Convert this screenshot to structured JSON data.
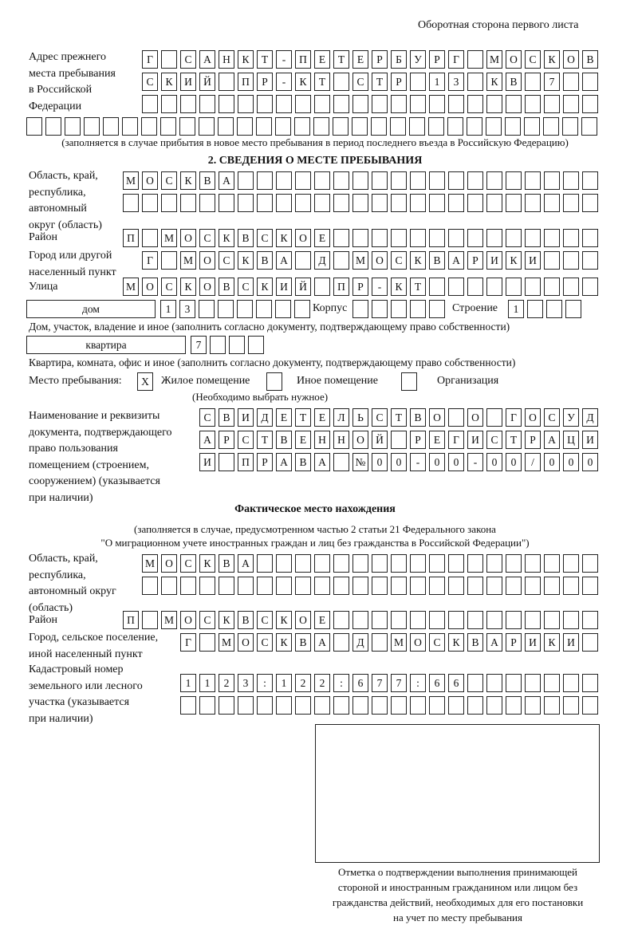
{
  "header": {
    "page_side": "Оборотная сторона первого листа"
  },
  "previous_address": {
    "label": "Адрес прежнего\nместа пребывания\nв Российской\nФедерации",
    "rows": [
      [
        "Г",
        "",
        "С",
        "А",
        "Н",
        "К",
        "Т",
        "-",
        "П",
        "Е",
        "Т",
        "Е",
        "Р",
        "Б",
        "У",
        "Р",
        "Г",
        "",
        "М",
        "О",
        "С",
        "К",
        "О",
        "В"
      ],
      [
        "С",
        "К",
        "И",
        "Й",
        "",
        "П",
        "Р",
        "-",
        "К",
        "Т",
        "",
        "С",
        "Т",
        "Р",
        "",
        "1",
        "3",
        "",
        "К",
        "В",
        "",
        "7",
        "",
        ""
      ],
      [
        "",
        "",
        "",
        "",
        "",
        "",
        "",
        "",
        "",
        "",
        "",
        "",
        "",
        "",
        "",
        "",
        "",
        "",
        "",
        "",
        "",
        "",
        "",
        ""
      ],
      [
        "",
        "",
        "",
        "",
        "",
        "",
        "",
        "",
        "",
        "",
        "",
        "",
        "",
        "",
        "",
        "",
        "",
        "",
        "",
        "",
        "",
        "",
        "",
        "",
        "",
        "",
        "",
        "",
        "",
        ""
      ]
    ],
    "note": "(заполняется в случае прибытия в новое место пребывания в период последнего въезда в Российскую Федерацию)"
  },
  "section2": {
    "title": "2. СВЕДЕНИЯ О МЕСТЕ ПРЕБЫВАНИЯ",
    "region_label": "Область, край,\nреспублика,\nавтономный\nокруг (область)",
    "region_rows": [
      [
        "М",
        "О",
        "С",
        "К",
        "В",
        "А",
        "",
        "",
        "",
        "",
        "",
        "",
        "",
        "",
        "",
        "",
        "",
        "",
        "",
        "",
        "",
        "",
        "",
        "",
        ""
      ],
      [
        "",
        "",
        "",
        "",
        "",
        "",
        "",
        "",
        "",
        "",
        "",
        "",
        "",
        "",
        "",
        "",
        "",
        "",
        "",
        "",
        "",
        "",
        "",
        "",
        ""
      ]
    ],
    "district_label": "Район",
    "district_row": [
      "П",
      "",
      "М",
      "О",
      "С",
      "К",
      "В",
      "С",
      "К",
      "О",
      "Е",
      "",
      "",
      "",
      "",
      "",
      "",
      "",
      "",
      "",
      "",
      "",
      "",
      "",
      ""
    ],
    "city_label": "Город или другой\nнаселенный пункт",
    "city_row": [
      "Г",
      "",
      "М",
      "О",
      "С",
      "К",
      "В",
      "А",
      "",
      "Д",
      "",
      "М",
      "О",
      "С",
      "К",
      "В",
      "А",
      "Р",
      "И",
      "К",
      "И",
      "",
      "",
      ""
    ],
    "street_label": "Улица",
    "street_row": [
      "М",
      "О",
      "С",
      "К",
      "О",
      "В",
      "С",
      "К",
      "И",
      "Й",
      "",
      "П",
      "Р",
      "-",
      "К",
      "Т",
      "",
      "",
      "",
      "",
      "",
      "",
      "",
      "",
      ""
    ],
    "house_type": "дом",
    "house_row": [
      "1",
      "3",
      "",
      "",
      "",
      "",
      "",
      ""
    ],
    "korpus_label": "Корпус",
    "korpus_row": [
      "",
      "",
      "",
      "",
      ""
    ],
    "building_label": "Строение",
    "building_row": [
      "1",
      "",
      "",
      ""
    ],
    "house_note": "Дом, участок, владение и иное (заполнить согласно документу, подтверждающему право собственности)",
    "apt_type": "квартира",
    "apt_row": [
      "7",
      "",
      "",
      ""
    ],
    "apt_note": "Квартира, комната, офис и иное (заполнить согласно документу, подтверждающему право собственности)",
    "stay_place_label": "Место пребывания:",
    "options": [
      {
        "label": "Жилое помещение",
        "mark": "X"
      },
      {
        "label": "Иное помещение",
        "mark": ""
      },
      {
        "label": "Организация",
        "mark": ""
      }
    ],
    "choose_note": "(Необходимо выбрать нужное)",
    "doc_label": "Наименование и реквизиты\nдокумента, подтверждающего\nправо пользования\nпомещением (строением,\nсооружением) (указывается\nпри наличии)",
    "doc_rows": [
      [
        "С",
        "В",
        "И",
        "Д",
        "Е",
        "Т",
        "Е",
        "Л",
        "Ь",
        "С",
        "Т",
        "В",
        "О",
        "",
        "О",
        "",
        "Г",
        "О",
        "С",
        "У",
        "Д"
      ],
      [
        "А",
        "Р",
        "С",
        "Т",
        "В",
        "Е",
        "Н",
        "Н",
        "О",
        "Й",
        "",
        "Р",
        "Е",
        "Г",
        "И",
        "С",
        "Т",
        "Р",
        "А",
        "Ц",
        "И"
      ],
      [
        "И",
        "",
        "П",
        "Р",
        "А",
        "В",
        "А",
        "",
        "№",
        "0",
        "0",
        "-",
        "0",
        "0",
        "-",
        "0",
        "0",
        "/",
        "0",
        "0",
        "0"
      ]
    ]
  },
  "actual": {
    "title": "Фактическое место нахождения",
    "subtitle1": "(заполняется в случае, предусмотренном частью 2 статьи 21 Федерального закона",
    "subtitle2": "\"О миграционном учете иностранных граждан и лиц без гражданства в Российской Федерации\")",
    "region_label": "Область, край,\nреспублика,\nавтономный округ\n(область)",
    "region_rows": [
      [
        "М",
        "О",
        "С",
        "К",
        "В",
        "А",
        "",
        "",
        "",
        "",
        "",
        "",
        "",
        "",
        "",
        "",
        "",
        "",
        "",
        "",
        "",
        "",
        "",
        ""
      ],
      [
        "",
        "",
        "",
        "",
        "",
        "",
        "",
        "",
        "",
        "",
        "",
        "",
        "",
        "",
        "",
        "",
        "",
        "",
        "",
        "",
        "",
        "",
        "",
        ""
      ]
    ],
    "district_label": "Район",
    "district_row": [
      "П",
      "",
      "М",
      "О",
      "С",
      "К",
      "В",
      "С",
      "К",
      "О",
      "Е",
      "",
      "",
      "",
      "",
      "",
      "",
      "",
      "",
      "",
      "",
      "",
      "",
      "",
      ""
    ],
    "city_label": "Город, сельское поселение,\nиной населенный пункт",
    "city_row": [
      "Г",
      "",
      "М",
      "О",
      "С",
      "К",
      "В",
      "А",
      "",
      "Д",
      "",
      "М",
      "О",
      "С",
      "К",
      "В",
      "А",
      "Р",
      "И",
      "К",
      "И",
      ""
    ],
    "cadastre_label": "Кадастровый номер\nземельного или лесного\nучастка (указывается\nпри наличии)",
    "cadastre_rows": [
      [
        "1",
        "1",
        "2",
        "3",
        ":",
        "1",
        "2",
        "2",
        ":",
        "6",
        "7",
        "7",
        ":",
        "6",
        "6",
        "",
        "",
        "",
        "",
        "",
        "",
        ""
      ],
      [
        "",
        "",
        "",
        "",
        "",
        "",
        "",
        "",
        "",
        "",
        "",
        "",
        "",
        "",
        "",
        "",
        "",
        "",
        "",
        "",
        "",
        ""
      ]
    ]
  },
  "stamp_box": {
    "caption": "Отметка о подтверждении выполнения принимающей\nстороной и иностранным гражданином или лицом без\nгражданства действий, необходимых для его постановки\nна учет по месту пребывания"
  }
}
